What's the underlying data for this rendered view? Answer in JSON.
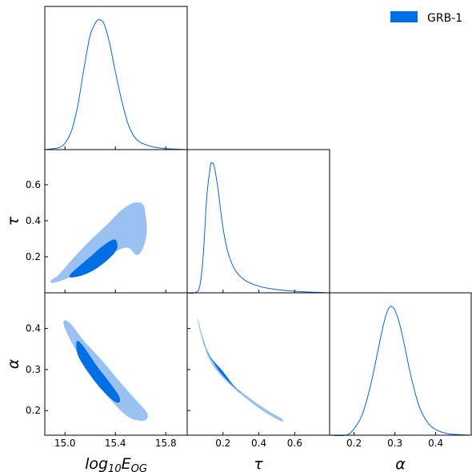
{
  "chart_data": {
    "type": "corner",
    "colors": {
      "line": "#0066e6",
      "inner": "#006fe6",
      "outer": "#99c2f2"
    },
    "legend": {
      "label": "GRB-1",
      "placement": "top-right"
    },
    "parameters": [
      {
        "key": "logE",
        "label": "log10E_OG",
        "label_base": "log",
        "label_sub1": "10",
        "label_main": "E",
        "label_sub2": "OG",
        "range": [
          14.84,
          15.97
        ],
        "ticks": [
          15.0,
          15.4,
          15.8
        ],
        "tick_labels": [
          "15.0",
          "15.4",
          "15.8"
        ]
      },
      {
        "key": "tau",
        "label": "τ",
        "range": [
          0.0,
          0.795
        ],
        "ticks": [
          0.2,
          0.4,
          0.6
        ],
        "tick_labels": [
          "0.2",
          "0.4",
          "0.6"
        ]
      },
      {
        "key": "alpha",
        "label": "α",
        "range": [
          0.14,
          0.487
        ],
        "ticks": [
          0.2,
          0.3,
          0.4
        ],
        "tick_labels": [
          "0.2",
          "0.3",
          "0.4"
        ]
      }
    ],
    "marginals": [
      {
        "param": "logE",
        "x": [
          14.84,
          14.95,
          15.0,
          15.05,
          15.1,
          15.15,
          15.2,
          15.25,
          15.28,
          15.31,
          15.35,
          15.4,
          15.45,
          15.5,
          15.55,
          15.6,
          15.65,
          15.7,
          15.8,
          15.97
        ],
        "density": [
          0.0,
          0.015,
          0.05,
          0.14,
          0.33,
          0.62,
          0.88,
          0.99,
          1.0,
          0.97,
          0.84,
          0.6,
          0.38,
          0.2,
          0.1,
          0.055,
          0.035,
          0.02,
          0.008,
          0.0
        ]
      },
      {
        "param": "tau",
        "x": [
          0.0,
          0.04,
          0.07,
          0.09,
          0.11,
          0.13,
          0.14,
          0.15,
          0.17,
          0.2,
          0.23,
          0.27,
          0.32,
          0.38,
          0.45,
          0.55,
          0.65,
          0.795
        ],
        "density": [
          0.0,
          0.0,
          0.05,
          0.3,
          0.75,
          0.98,
          1.0,
          0.98,
          0.82,
          0.5,
          0.3,
          0.17,
          0.1,
          0.06,
          0.035,
          0.018,
          0.008,
          0.0
        ]
      },
      {
        "param": "alpha",
        "x": [
          0.14,
          0.18,
          0.2,
          0.22,
          0.24,
          0.26,
          0.27,
          0.28,
          0.29,
          0.3,
          0.31,
          0.32,
          0.34,
          0.36,
          0.38,
          0.4,
          0.43,
          0.487
        ],
        "density": [
          0.0,
          0.0,
          0.05,
          0.16,
          0.38,
          0.68,
          0.83,
          0.95,
          1.0,
          0.97,
          0.88,
          0.75,
          0.45,
          0.22,
          0.1,
          0.045,
          0.012,
          0.0
        ]
      }
    ],
    "contours": [
      {
        "x": "logE",
        "y": "tau",
        "outer": [
          [
            14.9,
            0.055
          ],
          [
            15.0,
            0.075
          ],
          [
            15.1,
            0.11
          ],
          [
            15.25,
            0.17
          ],
          [
            15.4,
            0.23
          ],
          [
            15.5,
            0.25
          ],
          [
            15.57,
            0.21
          ],
          [
            15.62,
            0.25
          ],
          [
            15.65,
            0.34
          ],
          [
            15.64,
            0.43
          ],
          [
            15.62,
            0.49
          ],
          [
            15.55,
            0.5
          ],
          [
            15.45,
            0.46
          ],
          [
            15.35,
            0.39
          ],
          [
            15.2,
            0.29
          ],
          [
            15.05,
            0.18
          ],
          [
            14.95,
            0.1
          ],
          [
            14.89,
            0.07
          ]
        ],
        "inner": [
          [
            15.05,
            0.085
          ],
          [
            15.15,
            0.1
          ],
          [
            15.25,
            0.135
          ],
          [
            15.35,
            0.19
          ],
          [
            15.41,
            0.24
          ],
          [
            15.41,
            0.285
          ],
          [
            15.38,
            0.295
          ],
          [
            15.3,
            0.26
          ],
          [
            15.2,
            0.2
          ],
          [
            15.1,
            0.14
          ],
          [
            15.04,
            0.1
          ]
        ]
      },
      {
        "x": "logE",
        "y": "alpha",
        "outer": [
          [
            15.0,
            0.42
          ],
          [
            15.05,
            0.41
          ],
          [
            15.15,
            0.37
          ],
          [
            15.3,
            0.32
          ],
          [
            15.45,
            0.265
          ],
          [
            15.58,
            0.22
          ],
          [
            15.65,
            0.195
          ],
          [
            15.65,
            0.18
          ],
          [
            15.6,
            0.175
          ],
          [
            15.5,
            0.185
          ],
          [
            15.38,
            0.22
          ],
          [
            15.25,
            0.27
          ],
          [
            15.12,
            0.33
          ],
          [
            15.03,
            0.38
          ],
          [
            14.99,
            0.41
          ]
        ],
        "inner": [
          [
            15.1,
            0.37
          ],
          [
            15.15,
            0.355
          ],
          [
            15.25,
            0.31
          ],
          [
            15.35,
            0.27
          ],
          [
            15.43,
            0.235
          ],
          [
            15.43,
            0.22
          ],
          [
            15.38,
            0.225
          ],
          [
            15.28,
            0.255
          ],
          [
            15.18,
            0.295
          ],
          [
            15.11,
            0.33
          ],
          [
            15.09,
            0.355
          ]
        ]
      },
      {
        "x": "tau",
        "y": "alpha",
        "outer": [
          [
            0.06,
            0.425
          ],
          [
            0.08,
            0.39
          ],
          [
            0.12,
            0.34
          ],
          [
            0.18,
            0.3
          ],
          [
            0.25,
            0.265
          ],
          [
            0.35,
            0.23
          ],
          [
            0.45,
            0.2
          ],
          [
            0.53,
            0.18
          ],
          [
            0.52,
            0.175
          ],
          [
            0.42,
            0.2
          ],
          [
            0.3,
            0.24
          ],
          [
            0.2,
            0.28
          ],
          [
            0.13,
            0.32
          ],
          [
            0.09,
            0.365
          ],
          [
            0.065,
            0.405
          ]
        ],
        "inner": [
          [
            0.085,
            0.375
          ],
          [
            0.11,
            0.345
          ],
          [
            0.15,
            0.315
          ],
          [
            0.2,
            0.285
          ],
          [
            0.28,
            0.25
          ],
          [
            0.3,
            0.245
          ],
          [
            0.27,
            0.255
          ],
          [
            0.2,
            0.295
          ],
          [
            0.14,
            0.325
          ],
          [
            0.1,
            0.355
          ]
        ]
      }
    ]
  }
}
